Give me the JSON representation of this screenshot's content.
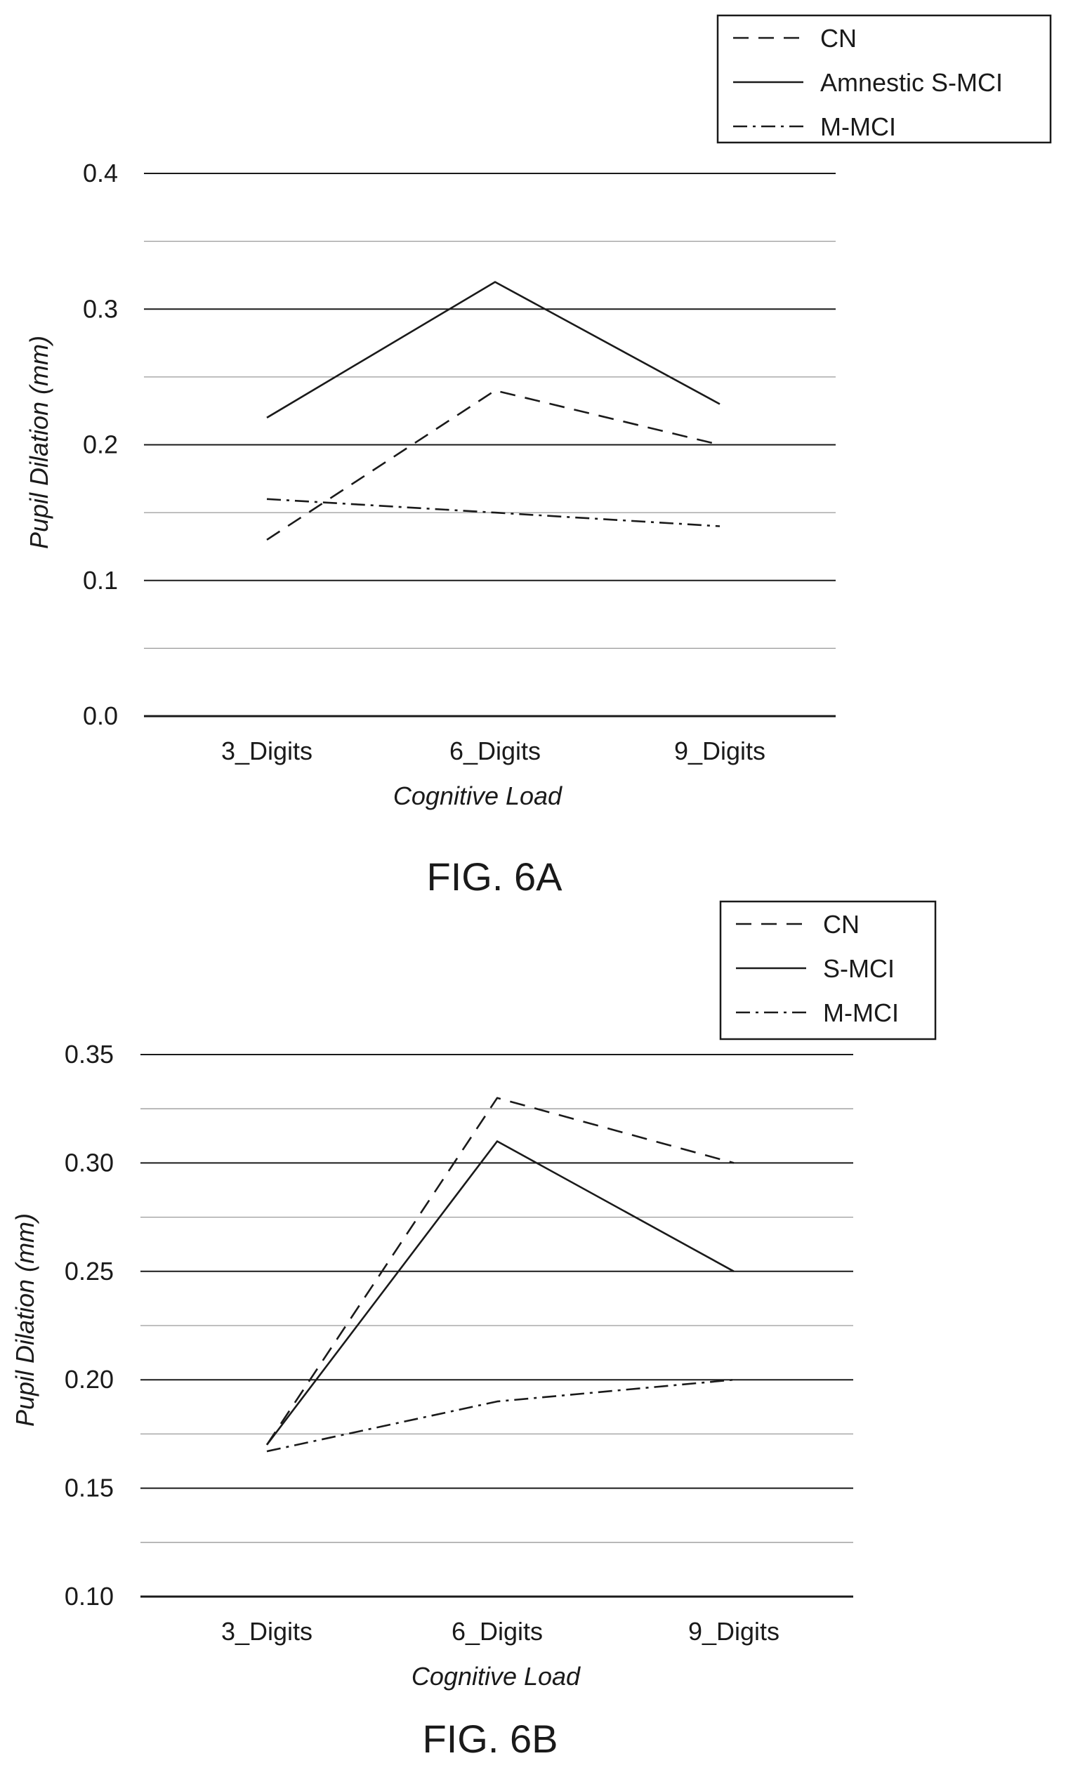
{
  "chart_data": [
    {
      "type": "line",
      "title": "",
      "caption": "FIG. 6A",
      "xlabel": "Cognitive Load",
      "ylabel": "Pupil Dilation (mm)",
      "categories": [
        "3_Digits",
        "6_Digits",
        "9_Digits"
      ],
      "ylim": [
        0.0,
        0.4
      ],
      "yticks": [
        "0.0",
        "0.1",
        "0.2",
        "0.3",
        "0.4"
      ],
      "minor_grid_step": 0.05,
      "grid": true,
      "legend_position": "top-right",
      "series": [
        {
          "name": "CN",
          "style": "dashed",
          "values": [
            0.13,
            0.24,
            0.2
          ]
        },
        {
          "name": "Amnestic S-MCI",
          "style": "solid",
          "values": [
            0.22,
            0.32,
            0.23
          ]
        },
        {
          "name": "M-MCI",
          "style": "dashdot",
          "values": [
            0.16,
            0.15,
            0.14
          ]
        }
      ]
    },
    {
      "type": "line",
      "title": "",
      "caption": "FIG. 6B",
      "xlabel": "Cognitive Load",
      "ylabel": "Pupil Dilation (mm)",
      "categories": [
        "3_Digits",
        "6_Digits",
        "9_Digits"
      ],
      "ylim": [
        0.1,
        0.35
      ],
      "yticks": [
        "0.10",
        "0.15",
        "0.20",
        "0.25",
        "0.30",
        "0.35"
      ],
      "minor_grid_step": 0.025,
      "grid": true,
      "legend_position": "top-right",
      "series": [
        {
          "name": "CN",
          "style": "dashed",
          "values": [
            0.17,
            0.33,
            0.3
          ]
        },
        {
          "name": "S-MCI",
          "style": "solid",
          "values": [
            0.17,
            0.31,
            0.25
          ]
        },
        {
          "name": "M-MCI",
          "style": "dashdot",
          "values": [
            0.167,
            0.19,
            0.2
          ]
        }
      ]
    }
  ]
}
